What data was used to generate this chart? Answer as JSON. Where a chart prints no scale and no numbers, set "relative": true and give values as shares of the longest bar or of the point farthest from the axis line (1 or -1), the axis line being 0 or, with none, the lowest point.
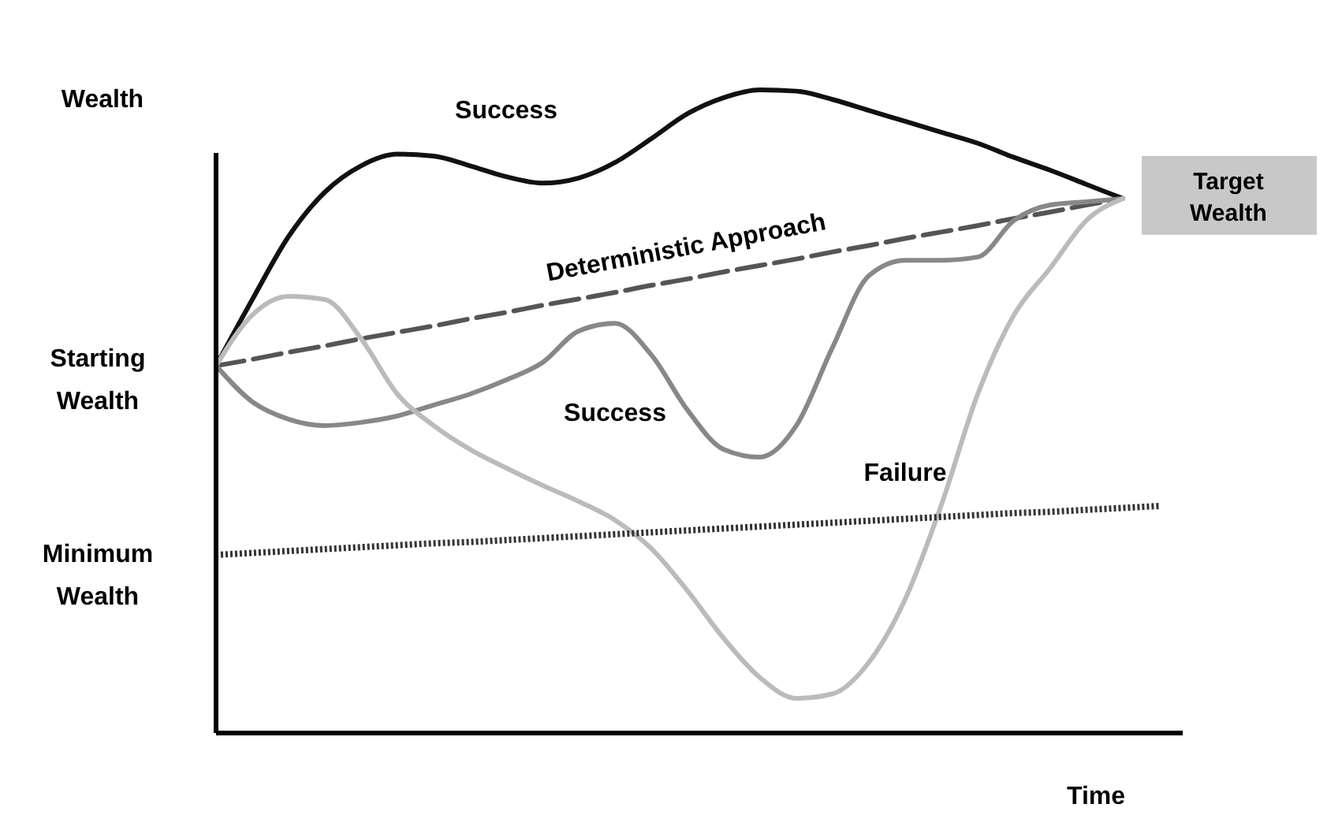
{
  "chart_data": {
    "type": "line",
    "relative": true,
    "xlabel": "Time",
    "ylabel": "Wealth",
    "categories": [
      null,
      null,
      null,
      null,
      null,
      null,
      null,
      null,
      null,
      null,
      null,
      null,
      null,
      null,
      null,
      null,
      null,
      null,
      null,
      null,
      null,
      null,
      null,
      null,
      null,
      null,
      null
    ],
    "series": [
      {
        "name": "Success",
        "color": "#111111",
        "values": [
          0.571,
          0.674,
          0.772,
          0.841,
          0.882,
          0.9,
          0.897,
          0.882,
          0.865,
          0.855,
          0.863,
          0.887,
          0.924,
          0.963,
          0.988,
          1.0,
          0.998,
          0.985,
          0.968,
          0.951,
          0.934,
          0.917,
          0.895,
          0.875,
          0.853,
          0.831,
          null
        ]
      },
      {
        "name": "Deterministic Approach",
        "color": "#555555",
        "line_style": "dashed",
        "values": [
          0.571,
          0.581,
          0.592,
          0.602,
          0.613,
          0.623,
          0.633,
          0.644,
          0.654,
          0.665,
          0.675,
          0.685,
          0.696,
          0.706,
          0.717,
          0.727,
          0.737,
          0.748,
          0.758,
          0.769,
          0.779,
          0.789,
          0.8,
          0.81,
          0.821,
          0.831,
          null
        ]
      },
      {
        "name": "Success",
        "color": "#888888",
        "values": [
          0.571,
          0.515,
          0.488,
          0.478,
          0.483,
          0.493,
          0.51,
          0.527,
          0.549,
          0.576,
          0.625,
          0.637,
          0.588,
          0.502,
          0.441,
          0.429,
          0.478,
          0.6,
          0.711,
          0.735,
          0.735,
          0.74,
          0.797,
          0.821,
          0.826,
          0.831,
          null
        ]
      },
      {
        "name": "Failure",
        "color": "#bbbbbb",
        "values": [
          0.571,
          0.65,
          0.679,
          0.674,
          0.613,
          0.527,
          0.478,
          0.441,
          0.412,
          0.385,
          0.36,
          0.331,
          0.287,
          0.221,
          0.147,
          0.086,
          0.054,
          0.061,
          0.11,
          0.208,
          0.355,
          0.527,
          0.65,
          0.723,
          0.797,
          0.831,
          null
        ]
      },
      {
        "color": "#333333",
        "line_style": "dotted",
        "values": [
          0.277,
          0.28,
          0.283,
          0.286,
          0.289,
          0.292,
          0.295,
          0.297,
          0.3,
          0.303,
          0.306,
          0.309,
          0.312,
          0.315,
          0.318,
          0.321,
          0.324,
          0.327,
          0.33,
          0.333,
          0.336,
          0.339,
          0.342,
          0.344,
          0.347,
          0.35,
          0.353
        ]
      }
    ],
    "annotations": [
      "Starting Wealth",
      "Minimum Wealth",
      "Target Wealth"
    ]
  }
}
